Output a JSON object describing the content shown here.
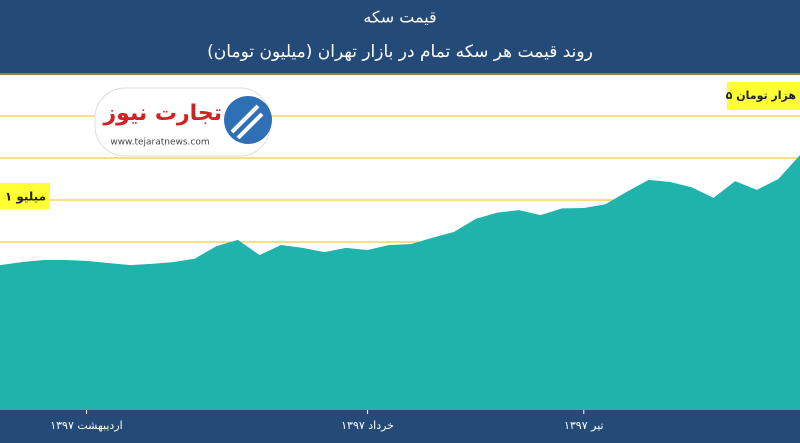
{
  "chart_data": {
    "type": "area",
    "title": "قیمت سکه",
    "subtitle": "روند قیمت هر سکه تمام در بازار تهران (میلیون تومان)",
    "categories": [
      null,
      null,
      null,
      null,
      "اردیبهشت ۱۳۹۷",
      null,
      null,
      null,
      null,
      null,
      null,
      null,
      null,
      null,
      null,
      null,
      null,
      "خرداد ۱۳۹۷",
      null,
      null,
      null,
      null,
      null,
      null,
      null,
      null,
      null,
      "تیر ۱۳۹۷",
      null,
      null,
      null,
      null,
      null,
      null,
      null,
      null,
      null,
      null
    ],
    "values": [
      3.45,
      3.52,
      3.57,
      3.57,
      3.55,
      3.5,
      3.45,
      3.48,
      3.52,
      3.6,
      3.9,
      4.05,
      3.69,
      3.93,
      3.86,
      3.76,
      3.86,
      3.81,
      3.93,
      3.95,
      4.1,
      4.24,
      4.55,
      4.7,
      4.76,
      4.64,
      4.8,
      4.81,
      4.9,
      5.2,
      5.48,
      5.43,
      5.3,
      5.05,
      5.45,
      5.24,
      5.5,
      6.07
    ],
    "color": "#1fb3ab",
    "grid_color": "#f2c200",
    "ylim": [
      0,
      8
    ],
    "yticks": [
      4,
      5,
      6,
      7,
      8
    ],
    "grid": true,
    "annotations": {
      "left_label": "۱ میلیو",
      "right_label": "۵ هزار تومان",
      "logo_text": "تجارت نیوز",
      "logo_url": "www.tejaratnews.com"
    }
  }
}
